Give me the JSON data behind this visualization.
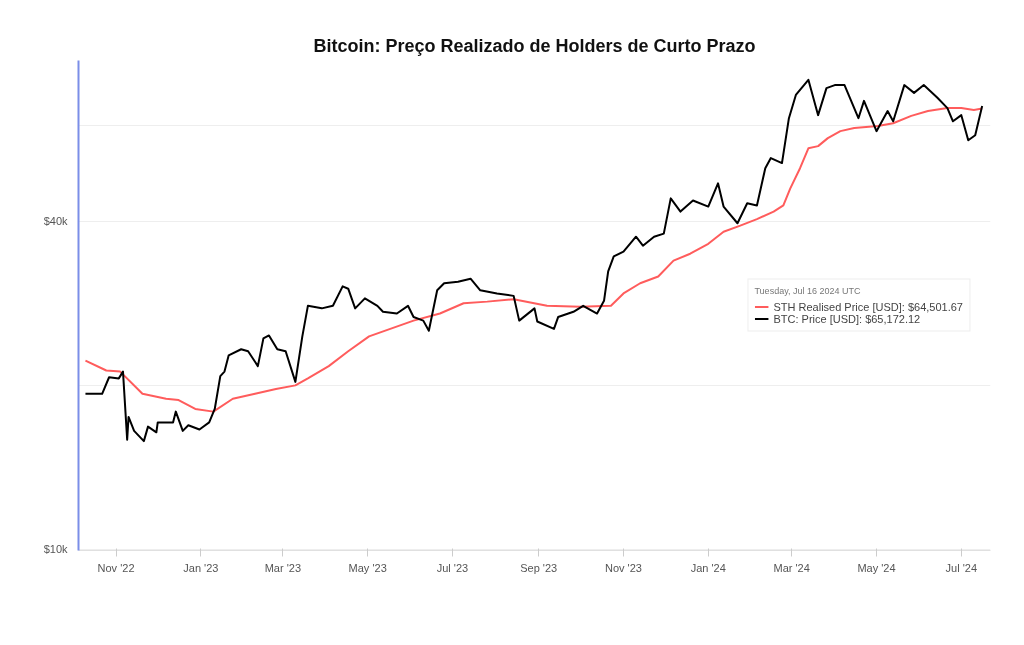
{
  "chart_data": {
    "type": "line",
    "title": "Bitcoin: Preço Realizado de Holders de Curto Prazo",
    "legend_title": "Tuesday, Jul 16 2024 UTC",
    "log": "y",
    "grid": "y",
    "legend": "right",
    "marker": "none",
    "line_style": "solid",
    "xlim": [
      "2022-10-05",
      "2024-07-22"
    ],
    "ylim": [
      9950,
      79000
    ],
    "xticks": [
      {
        "value": "2022-11-01",
        "label": "Nov '22"
      },
      {
        "value": "2023-01-01",
        "label": "Jan '23"
      },
      {
        "value": "2023-03-01",
        "label": "Mar '23"
      },
      {
        "value": "2023-05-01",
        "label": "May '23"
      },
      {
        "value": "2023-07-01",
        "label": "Jul '23"
      },
      {
        "value": "2023-09-01",
        "label": "Sep '23"
      },
      {
        "value": "2023-11-01",
        "label": "Nov '23"
      },
      {
        "value": "2024-01-01",
        "label": "Jan '24"
      },
      {
        "value": "2024-03-01",
        "label": "Mar '24"
      },
      {
        "value": "2024-05-01",
        "label": "May '24"
      },
      {
        "value": "2024-07-01",
        "label": "Jul '24"
      }
    ],
    "yticks": [
      {
        "value": 10000,
        "label": "$10k"
      },
      {
        "value": 20000,
        "label": null
      },
      {
        "value": 40000,
        "label": "$40k"
      },
      {
        "value": 60000,
        "label": null
      }
    ],
    "series": [
      {
        "name": "STH Realised Price [USD]: $64,501.67",
        "color": "#ff5c5c",
        "x": [
          "2022-10-10",
          "2022-10-25",
          "2022-11-04",
          "2022-11-20",
          "2022-12-07",
          "2022-12-16",
          "2022-12-28",
          "2023-01-10",
          "2023-01-24",
          "2023-02-09",
          "2023-02-24",
          "2023-03-10",
          "2023-03-19",
          "2023-04-03",
          "2023-04-17",
          "2023-05-02",
          "2023-06-03",
          "2023-06-22",
          "2023-07-09",
          "2023-07-26",
          "2023-08-14",
          "2023-09-07",
          "2023-10-01",
          "2023-10-23",
          "2023-11-01",
          "2023-11-13",
          "2023-11-26",
          "2023-12-07",
          "2023-12-19",
          "2024-01-01",
          "2024-01-12",
          "2024-01-24",
          "2024-02-05",
          "2024-02-17",
          "2024-02-24",
          "2024-02-29",
          "2024-03-07",
          "2024-03-13",
          "2024-03-20",
          "2024-03-27",
          "2024-04-05",
          "2024-04-15",
          "2024-05-02",
          "2024-05-13",
          "2024-05-26",
          "2024-06-07",
          "2024-06-21",
          "2024-07-01",
          "2024-07-10",
          "2024-07-16"
        ],
        "values": [
          22200,
          21300,
          21200,
          19300,
          18900,
          18800,
          18100,
          17900,
          18900,
          19300,
          19700,
          20000,
          20600,
          21700,
          23100,
          24600,
          26300,
          27100,
          28300,
          28500,
          28800,
          28000,
          27900,
          28000,
          29500,
          30800,
          31700,
          33900,
          34900,
          36400,
          38300,
          39300,
          40400,
          41700,
          42800,
          46000,
          50100,
          54500,
          55000,
          56900,
          58600,
          59400,
          59900,
          60600,
          62500,
          63800,
          64600,
          64600,
          64100,
          64501.67
        ]
      },
      {
        "name": "BTC: Price [USD]: $65,172.12",
        "color": "#000000",
        "x": [
          "2022-10-10",
          "2022-10-22",
          "2022-10-27",
          "2022-11-03",
          "2022-11-06",
          "2022-11-09",
          "2022-11-10",
          "2022-11-14",
          "2022-11-21",
          "2022-11-24",
          "2022-11-30",
          "2022-12-01",
          "2022-12-12",
          "2022-12-14",
          "2022-12-19",
          "2022-12-23",
          "2022-12-31",
          "2023-01-07",
          "2023-01-11",
          "2023-01-15",
          "2023-01-18",
          "2023-01-21",
          "2023-01-30",
          "2023-02-04",
          "2023-02-11",
          "2023-02-15",
          "2023-02-19",
          "2023-02-25",
          "2023-03-03",
          "2023-03-10",
          "2023-03-15",
          "2023-03-19",
          "2023-03-29",
          "2023-04-06",
          "2023-04-13",
          "2023-04-17",
          "2023-04-22",
          "2023-04-29",
          "2023-05-08",
          "2023-05-12",
          "2023-05-22",
          "2023-05-30",
          "2023-06-03",
          "2023-06-10",
          "2023-06-14",
          "2023-06-20",
          "2023-06-25",
          "2023-07-05",
          "2023-07-14",
          "2023-07-21",
          "2023-08-02",
          "2023-08-14",
          "2023-08-18",
          "2023-08-29",
          "2023-08-31",
          "2023-09-12",
          "2023-09-15",
          "2023-09-26",
          "2023-10-03",
          "2023-10-13",
          "2023-10-18",
          "2023-10-21",
          "2023-10-25",
          "2023-11-01",
          "2023-11-10",
          "2023-11-15",
          "2023-11-23",
          "2023-11-30",
          "2023-12-05",
          "2023-12-12",
          "2023-12-21",
          "2024-01-01",
          "2024-01-08",
          "2024-01-12",
          "2024-01-22",
          "2024-01-29",
          "2024-02-05",
          "2024-02-11",
          "2024-02-15",
          "2024-02-23",
          "2024-02-28",
          "2024-03-04",
          "2024-03-13",
          "2024-03-20",
          "2024-03-26",
          "2024-04-01",
          "2024-04-08",
          "2024-04-18",
          "2024-04-22",
          "2024-05-01",
          "2024-05-09",
          "2024-05-13",
          "2024-05-21",
          "2024-05-28",
          "2024-06-04",
          "2024-06-14",
          "2024-06-21",
          "2024-06-25",
          "2024-07-01",
          "2024-07-06",
          "2024-07-11",
          "2024-07-16"
        ],
        "values": [
          19300,
          19300,
          20700,
          20600,
          21200,
          15900,
          17500,
          16500,
          15800,
          16800,
          16400,
          17100,
          17100,
          17900,
          16500,
          16900,
          16600,
          17100,
          18100,
          20800,
          21200,
          22700,
          23300,
          23100,
          21700,
          24400,
          24700,
          23300,
          23100,
          20300,
          24600,
          28000,
          27700,
          28000,
          30400,
          30100,
          27700,
          28900,
          28000,
          27300,
          27100,
          28000,
          26700,
          26300,
          25200,
          29900,
          30800,
          31000,
          31400,
          29900,
          29500,
          29200,
          26300,
          27700,
          26200,
          25400,
          26700,
          27300,
          28000,
          27100,
          28600,
          32400,
          34500,
          35200,
          37500,
          36100,
          37500,
          38000,
          44100,
          41700,
          43700,
          42600,
          47000,
          42600,
          39700,
          43200,
          42800,
          50100,
          52300,
          51200,
          61900,
          68300,
          72800,
          62700,
          70300,
          71200,
          71200,
          61900,
          66600,
          58600,
          63800,
          61100,
          71200,
          68900,
          71200,
          67400,
          64600,
          61100,
          62700,
          56400,
          57600,
          65172.12
        ]
      }
    ]
  }
}
